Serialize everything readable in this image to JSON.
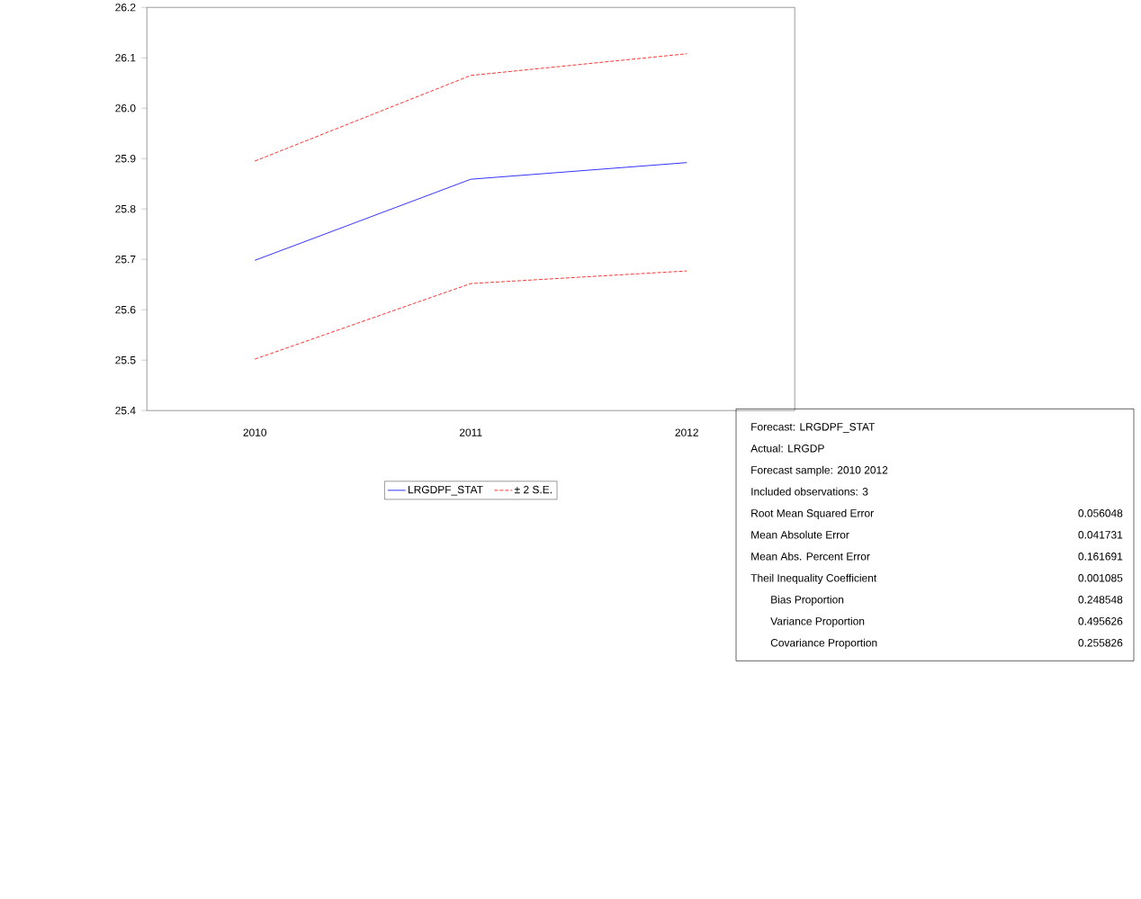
{
  "chart_data": [
    {
      "type": "line",
      "categories": [
        "2010",
        "2011",
        "2012"
      ],
      "series": [
        {
          "name": "LRGDPF_STAT",
          "color": "#0000ff",
          "line_style": "solid",
          "values": [
            25.698,
            25.859,
            25.892
          ]
        },
        {
          "name": "± 2 S.E.",
          "color": "#ff0000",
          "line_style": "dashed",
          "values": [
            25.895,
            26.065,
            26.108
          ]
        },
        {
          "color": "#ff0000",
          "line_style": "dashed",
          "values": [
            25.502,
            25.652,
            25.677
          ]
        }
      ],
      "ylim": [
        25.4,
        26.2
      ],
      "yticks": [
        25.4,
        25.5,
        25.6,
        25.7,
        25.8,
        25.9,
        {
          "value": 26.0,
          "label": "26.0"
        },
        26.1,
        26.2
      ],
      "grid": false,
      "marker": "none",
      "legend": "bottom"
    },
    {
      "type": "other",
      "annotations": [
        "Forecast: LRGDPF_STAT",
        "Actual: LRGDP",
        "Forecast sample: 2010 2012",
        "Included observations: 3",
        "Root Mean Squared Error",
        "0.056048",
        "Mean Absolute Error",
        "0.041731",
        "Mean Abs. Percent Error",
        "0.161691",
        "Theil Inequality Coefficient",
        "0.001085",
        "Bias Proportion",
        "0.248548",
        "Variance Proportion",
        "0.495626",
        "Covariance Proportion",
        "0.255826"
      ]
    }
  ]
}
